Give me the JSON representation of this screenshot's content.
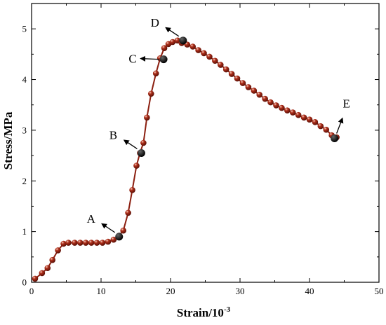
{
  "chart_data": {
    "type": "line",
    "title": "",
    "xlabel_main": "Strain/10",
    "xlabel_sup": "-3",
    "ylabel": "Stress/MPa",
    "xlim": [
      0,
      50
    ],
    "ylim": [
      0,
      5.5
    ],
    "xticks": [
      0,
      10,
      20,
      30,
      40,
      50
    ],
    "yticks": [
      0,
      1,
      2,
      3,
      4,
      5
    ],
    "grid": false,
    "series": [
      {
        "marker": "sphere",
        "color": "#b0301c",
        "line_color": "#8b1f10",
        "x": [
          0.5,
          1.5,
          2.3,
          3.0,
          3.8,
          4.6,
          5.3,
          6.2,
          7.0,
          7.8,
          8.6,
          9.4,
          10.2,
          11.0,
          11.8,
          12.6,
          13.2,
          13.9,
          14.5,
          15.1,
          15.6,
          16.1,
          16.6,
          17.2,
          17.9,
          18.5,
          19.1,
          19.7,
          20.3,
          21.0,
          21.6,
          22.4,
          23.2,
          24.0,
          24.8,
          25.6,
          26.4,
          27.2,
          28.0,
          28.8,
          29.6,
          30.4,
          31.2,
          32.0,
          32.8,
          33.6,
          34.4,
          35.2,
          36.0,
          36.8,
          37.6,
          38.4,
          39.2,
          40.0,
          40.8,
          41.6,
          42.4,
          43.2,
          43.9
        ],
        "y": [
          0.07,
          0.18,
          0.28,
          0.44,
          0.63,
          0.76,
          0.78,
          0.78,
          0.78,
          0.78,
          0.78,
          0.78,
          0.78,
          0.8,
          0.84,
          0.92,
          1.02,
          1.37,
          1.82,
          2.3,
          2.55,
          2.75,
          3.25,
          3.72,
          4.12,
          4.42,
          4.62,
          4.7,
          4.74,
          4.77,
          4.72,
          4.69,
          4.65,
          4.58,
          4.52,
          4.45,
          4.37,
          4.29,
          4.2,
          4.11,
          4.02,
          3.93,
          3.85,
          3.78,
          3.7,
          3.62,
          3.55,
          3.49,
          3.44,
          3.39,
          3.35,
          3.3,
          3.25,
          3.21,
          3.16,
          3.08,
          3.01,
          2.9,
          2.86
        ]
      }
    ],
    "annotations": [
      {
        "label": "A",
        "x": 12.6,
        "y": 0.9,
        "dir": "up-left"
      },
      {
        "label": "B",
        "x": 15.8,
        "y": 2.55,
        "dir": "up-left"
      },
      {
        "label": "C",
        "x": 19.0,
        "y": 4.4,
        "dir": "left"
      },
      {
        "label": "D",
        "x": 21.8,
        "y": 4.77,
        "dir": "up-left"
      },
      {
        "label": "E",
        "x": 43.6,
        "y": 2.84,
        "dir": "up-right"
      }
    ]
  }
}
